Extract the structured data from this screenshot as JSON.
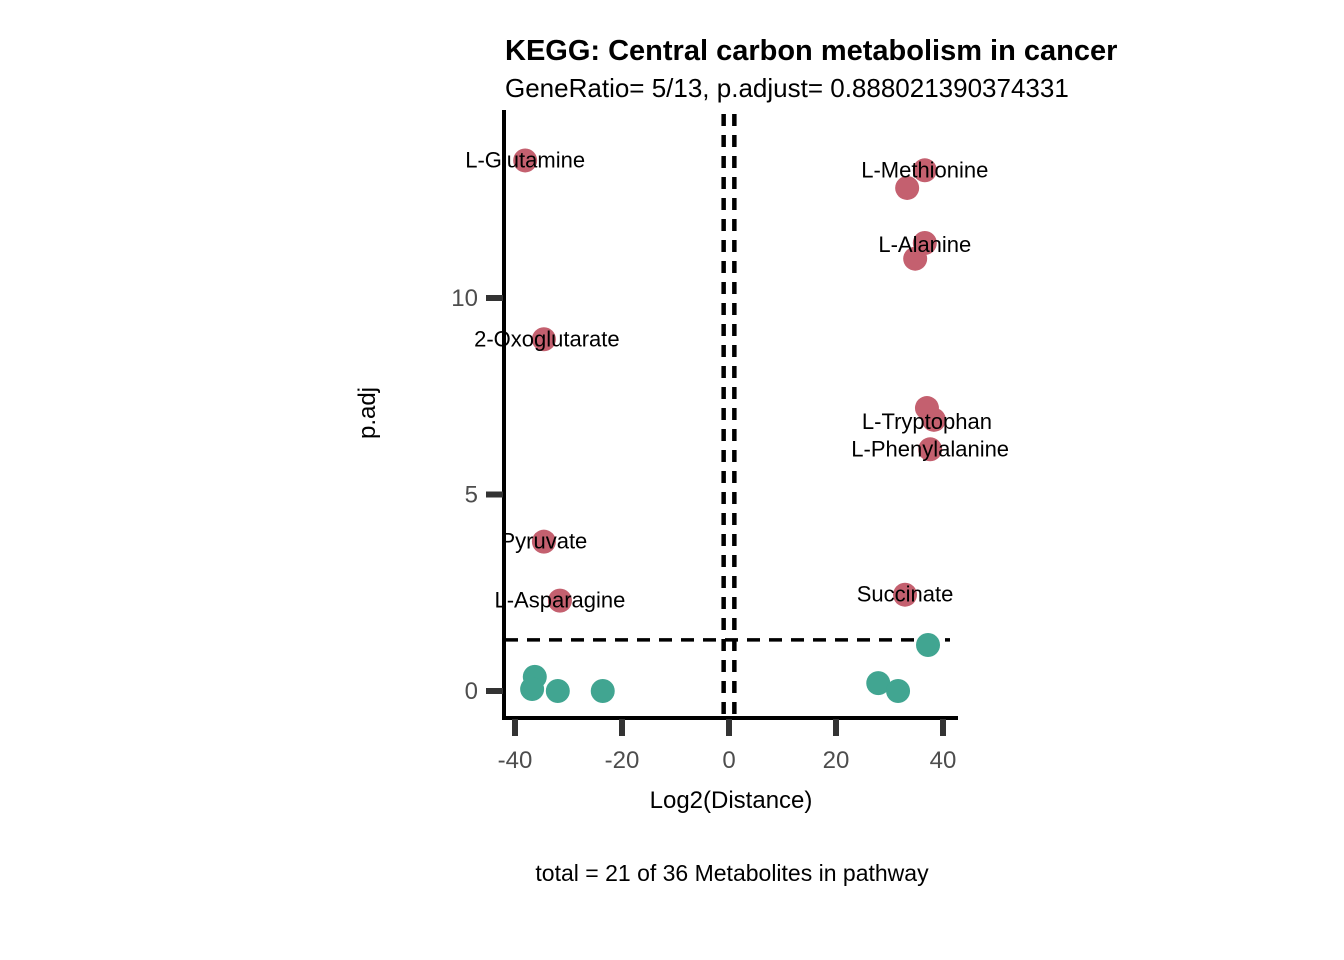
{
  "title": "KEGG: Central carbon metabolism in cancer",
  "subtitle": "GeneRatio= 5/13, p.adjust= 0.888021390374331",
  "caption": "total = 21 of 36 Metabolites in pathway",
  "chart_data": {
    "type": "scatter",
    "title": "KEGG: Central carbon metabolism in cancer",
    "subtitle": "GeneRatio= 5/13, p.adjust= 0.888021390374331",
    "xlabel": "Log2(Distance)",
    "ylabel": "p.adj",
    "caption": "total = 21 of 36 Metabolites in pathway",
    "x_ticks": [
      -40,
      -20,
      0,
      20,
      40
    ],
    "y_ticks": [
      0,
      5,
      10
    ],
    "xlim": [
      -43,
      43.5
    ],
    "ylim": [
      -0.7,
      14.8
    ],
    "grid": false,
    "legend": "none",
    "threshold_lines": {
      "style": "dashed",
      "hline_y": 1.3,
      "vline_x": [
        -1,
        1
      ]
    },
    "colors": {
      "significant": "#C4606F",
      "not_significant": "#41A591",
      "axis": "#000000",
      "tick": "#333333",
      "tick_label": "#4d4d4d"
    },
    "points": [
      {
        "label": "L-Glutamine",
        "x": -38.1,
        "y": 13.5,
        "group": "significant"
      },
      {
        "label": "L-Methionine",
        "x": 36.6,
        "y": 13.25,
        "group": "significant"
      },
      {
        "label": "",
        "x": 33.3,
        "y": 12.8,
        "group": "significant"
      },
      {
        "label": "L-Alanine",
        "x": 36.6,
        "y": 11.4,
        "group": "significant",
        "label_dy": 2
      },
      {
        "label": "",
        "x": 34.8,
        "y": 11.0,
        "group": "significant"
      },
      {
        "label": "2-Oxoglutarate",
        "x": -34.6,
        "y": 8.95,
        "group": "significant",
        "label_dx": 3
      },
      {
        "label": "L-Tryptophan",
        "x": 37.0,
        "y": 7.2,
        "group": "significant",
        "label_dy": 14
      },
      {
        "label": "",
        "x": 38.3,
        "y": 6.9,
        "group": "significant"
      },
      {
        "label": "L-Phenylalanine",
        "x": 37.6,
        "y": 6.15,
        "group": "significant"
      },
      {
        "label": "Pyruvate",
        "x": -34.6,
        "y": 3.8,
        "group": "significant"
      },
      {
        "label": "L-Asparagine",
        "x": -31.6,
        "y": 2.3,
        "group": "significant"
      },
      {
        "label": "Succinate",
        "x": 32.9,
        "y": 2.45,
        "group": "significant"
      },
      {
        "label": "",
        "x": 37.2,
        "y": 1.17,
        "group": "not_significant"
      },
      {
        "label": "",
        "x": -36.3,
        "y": 0.36,
        "group": "not_significant"
      },
      {
        "label": "",
        "x": -36.8,
        "y": 0.05,
        "group": "not_significant"
      },
      {
        "label": "",
        "x": -32.0,
        "y": 0.0,
        "group": "not_significant"
      },
      {
        "label": "",
        "x": -23.6,
        "y": 0.0,
        "group": "not_significant"
      },
      {
        "label": "",
        "x": 27.9,
        "y": 0.2,
        "group": "not_significant"
      },
      {
        "label": "",
        "x": 31.6,
        "y": 0.0,
        "group": "not_significant"
      }
    ]
  }
}
